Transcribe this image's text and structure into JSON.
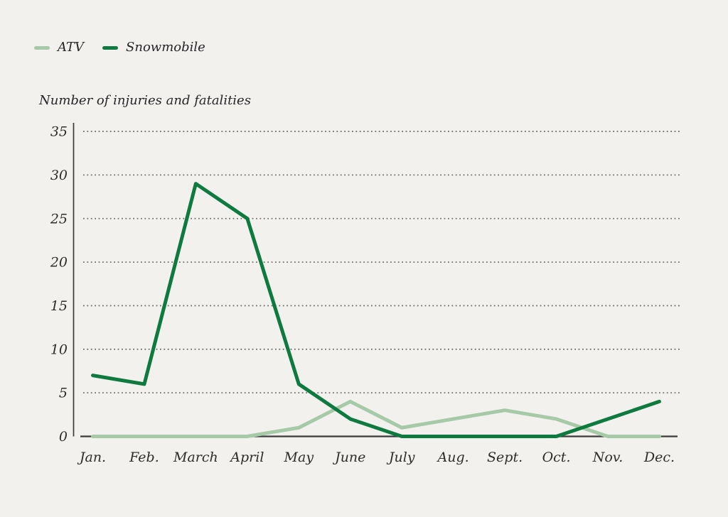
{
  "page": {
    "background": "#f2f1ee"
  },
  "legend": {
    "items": [
      {
        "label": "ATV",
        "color": "#a6c9a7"
      },
      {
        "label": "Snowmobile",
        "color": "#0f7a3f"
      }
    ]
  },
  "chart_data": {
    "type": "line",
    "title": "Number of injuries and fatalities",
    "ylabel": "Number of injuries and fatalities",
    "xlabel": "",
    "categories": [
      "Jan.",
      "Feb.",
      "March",
      "April",
      "May",
      "June",
      "July",
      "Aug.",
      "Sept.",
      "Oct.",
      "Nov.",
      "Dec."
    ],
    "series": [
      {
        "name": "ATV",
        "color": "#a6c9a7",
        "values": [
          0,
          0,
          0,
          0,
          1,
          4,
          1,
          2,
          3,
          2,
          0,
          0
        ]
      },
      {
        "name": "Snowmobile",
        "color": "#0f7a3f",
        "values": [
          7,
          6,
          29,
          25,
          6,
          2,
          0,
          0,
          0,
          0,
          2,
          4
        ]
      }
    ],
    "ylim": [
      0,
      35
    ],
    "yticks": [
      0,
      5,
      10,
      15,
      20,
      25,
      30,
      35
    ],
    "grid": "horizontal-dotted",
    "legend_position": "top-left",
    "axis_color": "#3c3b39",
    "grid_color": "#73716d",
    "label_color": "#2e2d2b"
  }
}
